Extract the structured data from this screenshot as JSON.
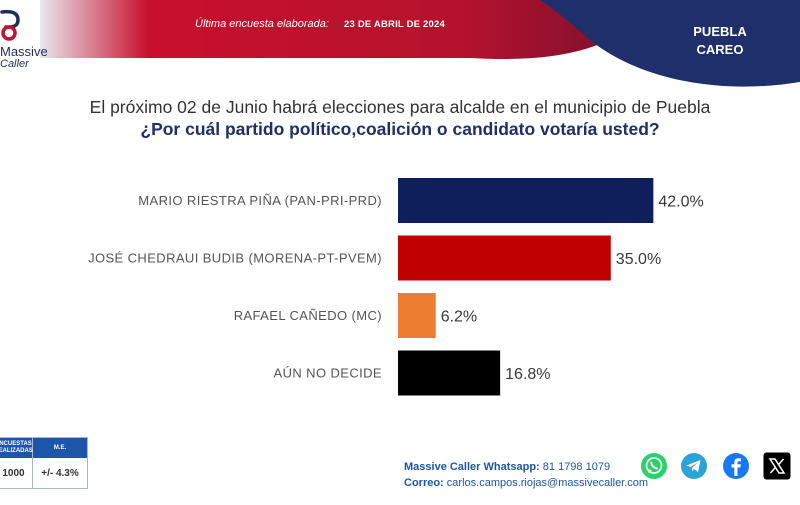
{
  "header": {
    "survey_label": "Última encuesta elaborada:",
    "survey_date": "23 DE ABRIL DE 2024",
    "region_line1": "PUEBLA",
    "region_line2": "CAREO"
  },
  "brand": {
    "name_part1": "Massive",
    "name_part2": "Caller"
  },
  "colors": {
    "header_red": "#c8102e",
    "header_navy": "#1e2f6b",
    "accent_blue": "#1d56a8"
  },
  "question": {
    "line1": "El próximo 02 de Junio habrá elecciones para alcalde en el municipio de Puebla",
    "line2": "¿Por cuál partido político,coalición o candidato votaría usted?"
  },
  "chart_data": {
    "type": "bar",
    "orientation": "horizontal",
    "categories": [
      "MARIO RIESTRA PIÑA (PAN-PRI-PRD)",
      "JOSÉ CHEDRAUI BUDIB (MORENA-PT-PVEM)",
      "RAFAEL CAÑEDO (MC)",
      "AÚN NO DECIDE"
    ],
    "values": [
      42.0,
      35.0,
      6.2,
      16.8
    ],
    "value_labels": [
      "42.0%",
      "35.0%",
      "6.2%",
      "16.8%"
    ],
    "colors": [
      "#0f1f5c",
      "#c00000",
      "#ed7d31",
      "#000000"
    ],
    "xlim": [
      0,
      100
    ],
    "grid": false
  },
  "stats": {
    "col1_header": "ENCUESTAS REALIZADAS",
    "col2_header": "M.E.",
    "col1_value": "1000",
    "col2_value": "+/- 4.3%"
  },
  "contact": {
    "whatsapp_label": "Massive Caller Whatsapp:",
    "whatsapp_number": "81 1798 1079",
    "email_label": "Correo:",
    "email": "carlos.campos.riojas@massivecaller.com"
  },
  "social_icons": [
    "whatsapp-icon",
    "telegram-icon",
    "facebook-icon",
    "x-icon"
  ]
}
